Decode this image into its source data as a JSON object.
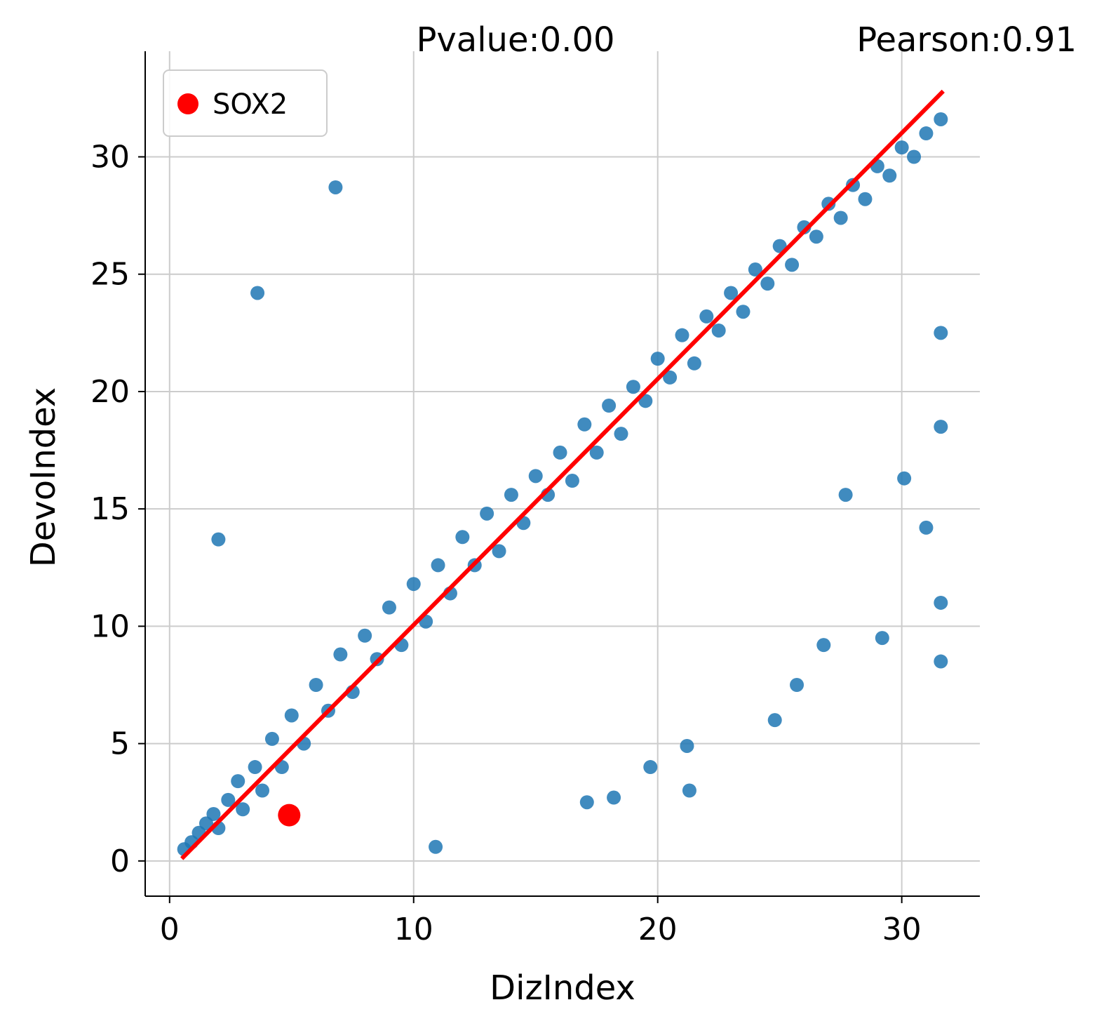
{
  "chart_data": {
    "type": "scatter",
    "title": "",
    "annotations": {
      "pvalue": "Pvalue:0.00",
      "pearson": "Pearson:0.91"
    },
    "xlabel": "DizIndex",
    "ylabel": "DevoIndex",
    "xlim": [
      -1,
      33.2
    ],
    "ylim": [
      -1.5,
      34.5
    ],
    "xticks": [
      0,
      10,
      20,
      30
    ],
    "xtick_labels": [
      "0",
      "10",
      "20",
      "30"
    ],
    "yticks": [
      0,
      5,
      10,
      15,
      20,
      25,
      30
    ],
    "ytick_labels": [
      "0",
      "5",
      "10",
      "15",
      "20",
      "25",
      "30"
    ],
    "grid": true,
    "legend": {
      "placement": "top-left",
      "entries": [
        "SOX2"
      ]
    },
    "colors": {
      "points": "#1f77b4",
      "fit_line": "#ff0000",
      "highlight": "#ff0000",
      "grid": "#cccccc"
    },
    "series": [
      {
        "type": "scatter",
        "color": "#1f77b4",
        "x": [
          0.6,
          0.9,
          1.2,
          1.5,
          1.8,
          2.0,
          2.4,
          2.8,
          3.0,
          3.5,
          3.8,
          4.2,
          4.6,
          5.0,
          5.5,
          6.0,
          6.5,
          7.0,
          7.5,
          8.0,
          8.5,
          9.0,
          9.5,
          10.0,
          10.5,
          11.0,
          11.5,
          12.0,
          12.5,
          13.0,
          13.5,
          14.0,
          14.5,
          15.0,
          15.5,
          16.0,
          16.5,
          17.0,
          17.5,
          18.0,
          18.5,
          19.0,
          19.5,
          20.0,
          20.5,
          21.0,
          21.5,
          22.0,
          22.5,
          23.0,
          23.5,
          24.0,
          24.5,
          25.0,
          25.5,
          26.0,
          26.5,
          27.0,
          27.5,
          28.0,
          28.5,
          29.0,
          29.5,
          30.0,
          30.5,
          31.0,
          31.6,
          3.6,
          2.0,
          6.8,
          10.9,
          21.3,
          24.8,
          25.7,
          29.2,
          31.6,
          31.6,
          31.6,
          31.6,
          27.7,
          26.8,
          18.2,
          19.7,
          17.1,
          21.2,
          30.1,
          31.0
        ],
        "y": [
          0.5,
          0.8,
          1.2,
          1.6,
          2.0,
          1.4,
          2.6,
          3.4,
          2.2,
          4.0,
          3.0,
          5.2,
          4.0,
          6.2,
          5.0,
          7.5,
          6.4,
          8.8,
          7.2,
          9.6,
          8.6,
          10.8,
          9.2,
          11.8,
          10.2,
          12.6,
          11.4,
          13.8,
          12.6,
          14.8,
          13.2,
          15.6,
          14.4,
          16.4,
          15.6,
          17.4,
          16.2,
          18.6,
          17.4,
          19.4,
          18.2,
          20.2,
          19.6,
          21.4,
          20.6,
          22.4,
          21.2,
          23.2,
          22.6,
          24.2,
          23.4,
          25.2,
          24.6,
          26.2,
          25.4,
          27.0,
          26.6,
          28.0,
          27.4,
          28.8,
          28.2,
          29.6,
          29.2,
          30.4,
          30.0,
          31.0,
          31.6,
          24.2,
          13.7,
          28.7,
          0.6,
          3.0,
          6.0,
          7.5,
          9.5,
          8.5,
          11.0,
          18.5,
          22.5,
          15.6,
          9.2,
          2.7,
          4.0,
          2.5,
          4.9,
          16.3,
          14.2
        ]
      },
      {
        "type": "scatter",
        "name": "SOX2",
        "color": "#ff0000",
        "x": [
          4.9
        ],
        "y": [
          1.95
        ]
      },
      {
        "type": "line",
        "color": "#ff0000",
        "x": [
          0.5,
          31.7
        ],
        "y": [
          0.1,
          32.8
        ]
      }
    ]
  }
}
